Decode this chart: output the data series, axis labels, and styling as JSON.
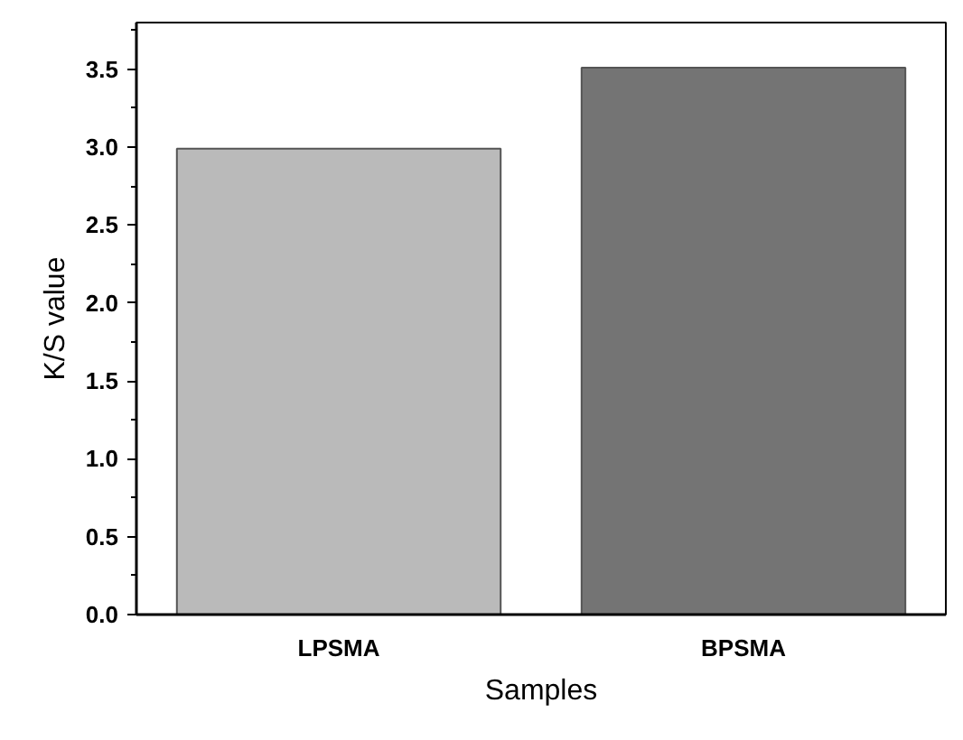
{
  "chart_data": {
    "type": "bar",
    "xlabel": "Samples",
    "ylabel": "K/S value",
    "categories": [
      "LPSMA",
      "BPSMA"
    ],
    "values": [
      2.99,
      3.51
    ],
    "colors": [
      "#bababa",
      "#747474"
    ],
    "ylim": [
      0,
      3.8
    ],
    "yticks": [
      {
        "value": 0,
        "label": "0.0"
      },
      {
        "value": 0.5,
        "label": "0.5"
      },
      {
        "value": 1,
        "label": "1.0"
      },
      {
        "value": 1.5,
        "label": "1.5"
      },
      {
        "value": 2,
        "label": "2.0"
      },
      {
        "value": 2.5,
        "label": "2.5"
      },
      {
        "value": 3,
        "label": "3.0"
      },
      {
        "value": 3.5,
        "label": "3.5"
      }
    ],
    "grid": false
  }
}
